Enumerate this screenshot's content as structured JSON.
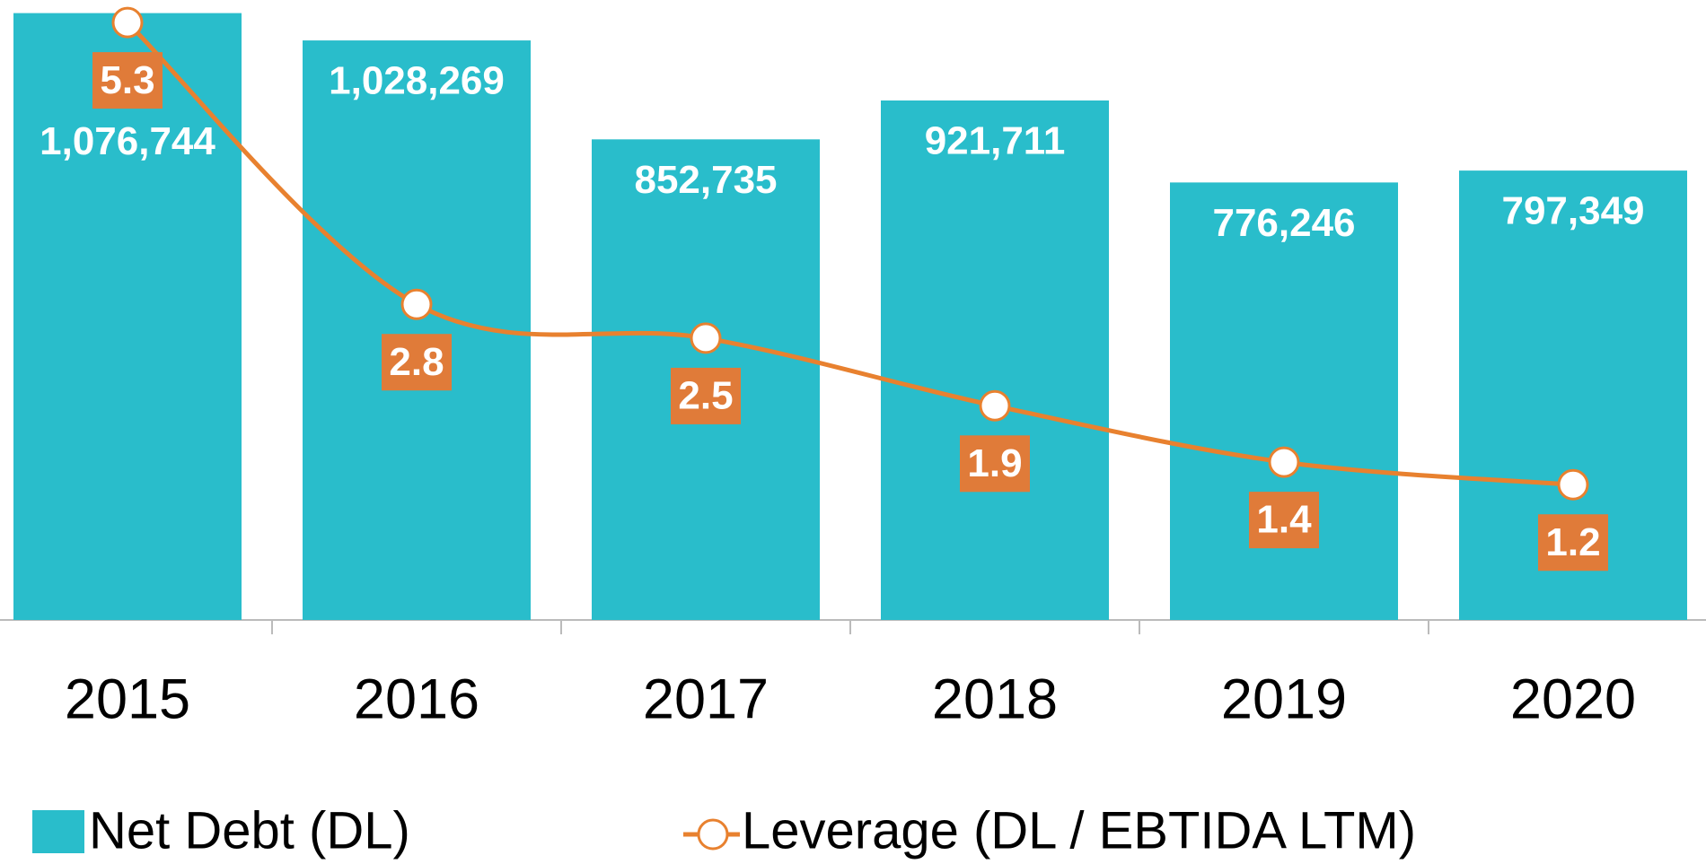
{
  "chart_data": {
    "type": "bar",
    "categories": [
      "2015",
      "2016",
      "2017",
      "2018",
      "2019",
      "2020"
    ],
    "series": [
      {
        "name": "Net Debt (DL)",
        "type": "bar",
        "color": "#29bdcb",
        "values": [
          1076744,
          1028269,
          852735,
          921711,
          776246,
          797349
        ],
        "value_labels": [
          "1,076,744",
          "1,028,269",
          "852,735",
          "921,711",
          "776,246",
          "797,349"
        ]
      },
      {
        "name": "Leverage (DL / EBTIDA LTM)",
        "type": "line",
        "axis": "y2",
        "color": "#e8812f",
        "values": [
          5.3,
          2.8,
          2.5,
          1.9,
          1.4,
          1.2
        ]
      }
    ],
    "ylim": [
      0,
      1100000
    ],
    "y2lim": [
      0,
      5.5
    ],
    "legend": "bottom"
  }
}
